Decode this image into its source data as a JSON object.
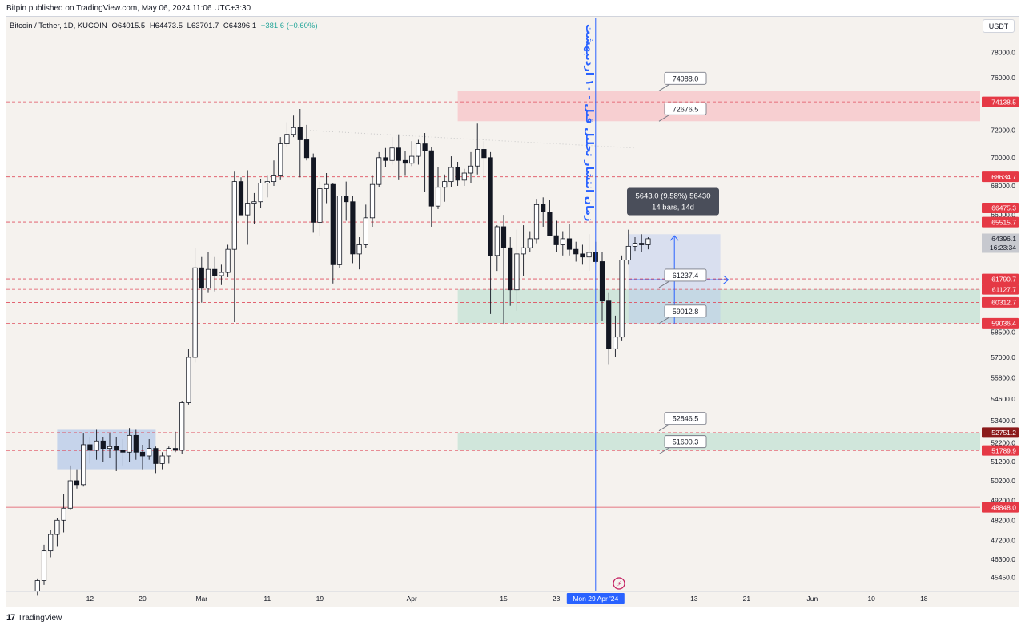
{
  "header": {
    "published_by": "Bitpin published on TradingView.com, May 06, 2024 11:06 UTC+3:30"
  },
  "symbol": {
    "name": "Bitcoin / Tether, 1D, KUCOIN",
    "open": "O64015.5",
    "high": "H64473.5",
    "low": "L63701.7",
    "close": "C64396.1",
    "change": "+381.6 (+0.60%)"
  },
  "currency_button": "USDT",
  "footer": {
    "brand": "TradingView",
    "logo_glyph": "17"
  },
  "annotation_text": "زمان انتشار تحلیل قبل - ۱۰ اردیبهشت",
  "measure_tooltip": {
    "line1": "5643.0 (9.58%) 56430",
    "line2": "14 bars, 14d"
  },
  "chart_data": {
    "type": "candlestick",
    "y_axis": {
      "min": 44800,
      "max": 79400,
      "scale": "log"
    },
    "y_ticks": [
      78000,
      76000,
      74000,
      72000,
      70000,
      68000,
      66000,
      58500,
      57000,
      55800,
      54600,
      53400,
      52200,
      51200,
      50200,
      49200,
      48200,
      47200,
      46300,
      45450
    ],
    "x_labels": [
      "12",
      "20",
      "Mar",
      "11",
      "19",
      "Apr",
      "15",
      "23",
      "13",
      "21",
      "Jun",
      "10",
      "18"
    ],
    "x_label_days": [
      12,
      20,
      29,
      39,
      47,
      61,
      75,
      83,
      104,
      112,
      122,
      131,
      139
    ],
    "x_axis_start": "Feb 1 2024",
    "current_time_label": "Mon 29 Apr '24",
    "current_time_day": 89,
    "price_levels": [
      {
        "label": "74138.5",
        "value": 74138.5,
        "style": "dashed"
      },
      {
        "label": "68634.7",
        "value": 68634.7,
        "style": "dashed"
      },
      {
        "label": "66475.3",
        "value": 66475.3,
        "style": "solid"
      },
      {
        "label": "65515.7",
        "value": 65515.7,
        "style": "dashed"
      },
      {
        "label": "61790.7",
        "value": 61790.7,
        "style": "dashed"
      },
      {
        "label": "61127.7",
        "value": 61127.7,
        "style": "dashed"
      },
      {
        "label": "60312.7",
        "value": 60312.7,
        "style": "dashed"
      },
      {
        "label": "59036.4",
        "value": 59036.4,
        "style": "dashed"
      },
      {
        "label": "52751.2",
        "value": 52751.2,
        "style": "dashed",
        "dark": true
      },
      {
        "label": "51789.9",
        "value": 51789.9,
        "style": "dashed"
      },
      {
        "label": "48848.0",
        "value": 48848.0,
        "style": "solid"
      }
    ],
    "last_price": {
      "label": "64396.1",
      "countdown": "16:23:34",
      "value": 64396.1
    },
    "callouts": [
      {
        "label": "74988.0",
        "value": 74988.0
      },
      {
        "label": "72676.5",
        "value": 72676.5
      },
      {
        "label": "61237.4",
        "value": 61237.4
      },
      {
        "label": "59012.8",
        "value": 59012.8
      },
      {
        "label": "52846.5",
        "value": 52846.5
      },
      {
        "label": "51600.3",
        "value": 51600.3
      }
    ],
    "zones": [
      {
        "type": "red",
        "from_day": 68,
        "to_day": 150,
        "low": 72676.5,
        "high": 74988.0
      },
      {
        "type": "green",
        "from_day": 68,
        "to_day": 150,
        "low": 59036.4,
        "high": 61127.7
      },
      {
        "type": "green",
        "from_day": 68,
        "to_day": 150,
        "low": 51789.9,
        "high": 52751.2
      },
      {
        "type": "blue",
        "from_day": 7,
        "to_day": 22,
        "low": 50800,
        "high": 52900
      },
      {
        "type": "measure",
        "from_day": 94,
        "to_day": 108,
        "low": 59012.8,
        "high": 64700
      }
    ],
    "candles": [
      [
        4,
        44800,
        45400,
        44600,
        45300
      ],
      [
        5,
        45300,
        47000,
        45100,
        46700
      ],
      [
        6,
        46700,
        47700,
        46400,
        47500
      ],
      [
        7,
        47500,
        48300,
        46900,
        48200
      ],
      [
        8,
        48200,
        49500,
        47600,
        48800
      ],
      [
        9,
        48800,
        51000,
        48700,
        50200
      ],
      [
        10,
        50200,
        50800,
        49800,
        50000
      ],
      [
        11,
        50000,
        52700,
        49900,
        52100
      ],
      [
        12,
        52100,
        52500,
        51100,
        51800
      ],
      [
        13,
        51800,
        52900,
        51300,
        52300
      ],
      [
        14,
        52300,
        52500,
        51200,
        51900
      ],
      [
        15,
        51900,
        52700,
        51400,
        52000
      ],
      [
        16,
        52000,
        52500,
        50700,
        51800
      ],
      [
        17,
        51800,
        52400,
        51000,
        51700
      ],
      [
        18,
        51700,
        53000,
        51200,
        52600
      ],
      [
        19,
        52600,
        52900,
        51300,
        51700
      ],
      [
        20,
        51700,
        52100,
        50800,
        51500
      ],
      [
        21,
        51500,
        52400,
        51300,
        51900
      ],
      [
        22,
        51900,
        52000,
        50600,
        51100
      ],
      [
        23,
        51100,
        51700,
        50800,
        51500
      ],
      [
        24,
        51500,
        52000,
        51100,
        51900
      ],
      [
        25,
        51900,
        52800,
        51700,
        51800
      ],
      [
        26,
        51800,
        54500,
        51600,
        54400
      ],
      [
        27,
        54400,
        57500,
        54300,
        57000
      ],
      [
        28,
        57000,
        63800,
        56700,
        62500
      ],
      [
        29,
        62500,
        63200,
        60300,
        61200
      ],
      [
        30,
        61200,
        63500,
        60900,
        62400
      ],
      [
        31,
        62400,
        63200,
        61000,
        62000
      ],
      [
        32,
        62000,
        62700,
        61400,
        62200
      ],
      [
        33,
        62200,
        64000,
        61900,
        63700
      ],
      [
        34,
        63700,
        69000,
        59100,
        68300
      ],
      [
        35,
        68300,
        68600,
        66000,
        66000
      ],
      [
        36,
        66000,
        69100,
        64000,
        66800
      ],
      [
        37,
        66800,
        67500,
        65400,
        66900
      ],
      [
        38,
        66900,
        68500,
        66500,
        68200
      ],
      [
        39,
        68200,
        68700,
        67200,
        68300
      ],
      [
        40,
        68300,
        69800,
        68000,
        68700
      ],
      [
        41,
        68700,
        71500,
        68400,
        71000
      ],
      [
        42,
        71000,
        72600,
        70800,
        71700
      ],
      [
        43,
        71700,
        73100,
        71500,
        72200
      ],
      [
        44,
        72200,
        73600,
        68600,
        71300
      ],
      [
        45,
        71300,
        72400,
        69800,
        70000
      ],
      [
        46,
        70000,
        70300,
        64800,
        65500
      ],
      [
        47,
        65500,
        68300,
        64600,
        67800
      ],
      [
        48,
        67800,
        68900,
        66800,
        68100
      ],
      [
        49,
        68100,
        68200,
        61500,
        62700
      ],
      [
        50,
        62700,
        67300,
        62500,
        67300
      ],
      [
        51,
        67300,
        68300,
        65600,
        66900
      ],
      [
        52,
        66900,
        67300,
        62800,
        63400
      ],
      [
        53,
        63400,
        64500,
        62400,
        64000
      ],
      [
        54,
        64000,
        66700,
        63800,
        65800
      ],
      [
        55,
        65800,
        68700,
        65200,
        68100
      ],
      [
        56,
        68100,
        70400,
        67900,
        70000
      ],
      [
        57,
        70000,
        70700,
        69300,
        69800
      ],
      [
        58,
        69800,
        71500,
        69500,
        70700
      ],
      [
        59,
        70700,
        71700,
        68400,
        69800
      ],
      [
        60,
        69800,
        70500,
        68700,
        69600
      ],
      [
        61,
        69600,
        71200,
        69400,
        70100
      ],
      [
        62,
        70100,
        71300,
        69500,
        71000
      ],
      [
        63,
        71000,
        71800,
        67600,
        70500
      ],
      [
        64,
        70500,
        70800,
        65200,
        66600
      ],
      [
        65,
        66600,
        69300,
        66400,
        67900
      ],
      [
        66,
        67900,
        68800,
        66900,
        68300
      ],
      [
        67,
        68300,
        70100,
        67900,
        69300
      ],
      [
        68,
        69300,
        69700,
        68000,
        68400
      ],
      [
        69,
        68400,
        69200,
        68000,
        68900
      ],
      [
        70,
        68900,
        70400,
        68200,
        69400
      ],
      [
        71,
        69400,
        72500,
        68800,
        70600
      ],
      [
        72,
        70600,
        71200,
        68400,
        70000
      ],
      [
        73,
        70000,
        70400,
        59600,
        63300
      ],
      [
        74,
        63300,
        65300,
        62300,
        65200
      ],
      [
        75,
        65200,
        66000,
        59000,
        63800
      ],
      [
        76,
        63800,
        64500,
        60100,
        61100
      ],
      [
        77,
        61100,
        65000,
        59800,
        63400
      ],
      [
        78,
        63400,
        65300,
        62000,
        63800
      ],
      [
        79,
        63800,
        64900,
        63500,
        64400
      ],
      [
        80,
        64400,
        67100,
        64100,
        66700
      ],
      [
        81,
        66700,
        67200,
        65200,
        66200
      ],
      [
        82,
        66200,
        67000,
        64600,
        64600
      ],
      [
        83,
        64600,
        65600,
        63500,
        64000
      ],
      [
        84,
        64000,
        64900,
        63300,
        64400
      ],
      [
        85,
        64400,
        65400,
        63300,
        63700
      ],
      [
        86,
        63700,
        64200,
        62900,
        63400
      ],
      [
        87,
        63400,
        64000,
        62700,
        63200
      ],
      [
        88,
        63200,
        64700,
        62300,
        63500
      ],
      [
        89,
        63500,
        64200,
        62800,
        62900
      ],
      [
        90,
        62900,
        63500,
        59200,
        60400
      ],
      [
        91,
        60400,
        60900,
        56600,
        57500
      ],
      [
        92,
        57500,
        59500,
        57000,
        58200
      ],
      [
        93,
        58200,
        63300,
        58000,
        63000
      ],
      [
        94,
        63000,
        65000,
        62700,
        63900
      ],
      [
        95,
        63900,
        64500,
        63600,
        64100
      ],
      [
        96,
        64100,
        64700,
        63500,
        64000
      ],
      [
        97,
        64000,
        64500,
        63700,
        64400
      ]
    ]
  }
}
